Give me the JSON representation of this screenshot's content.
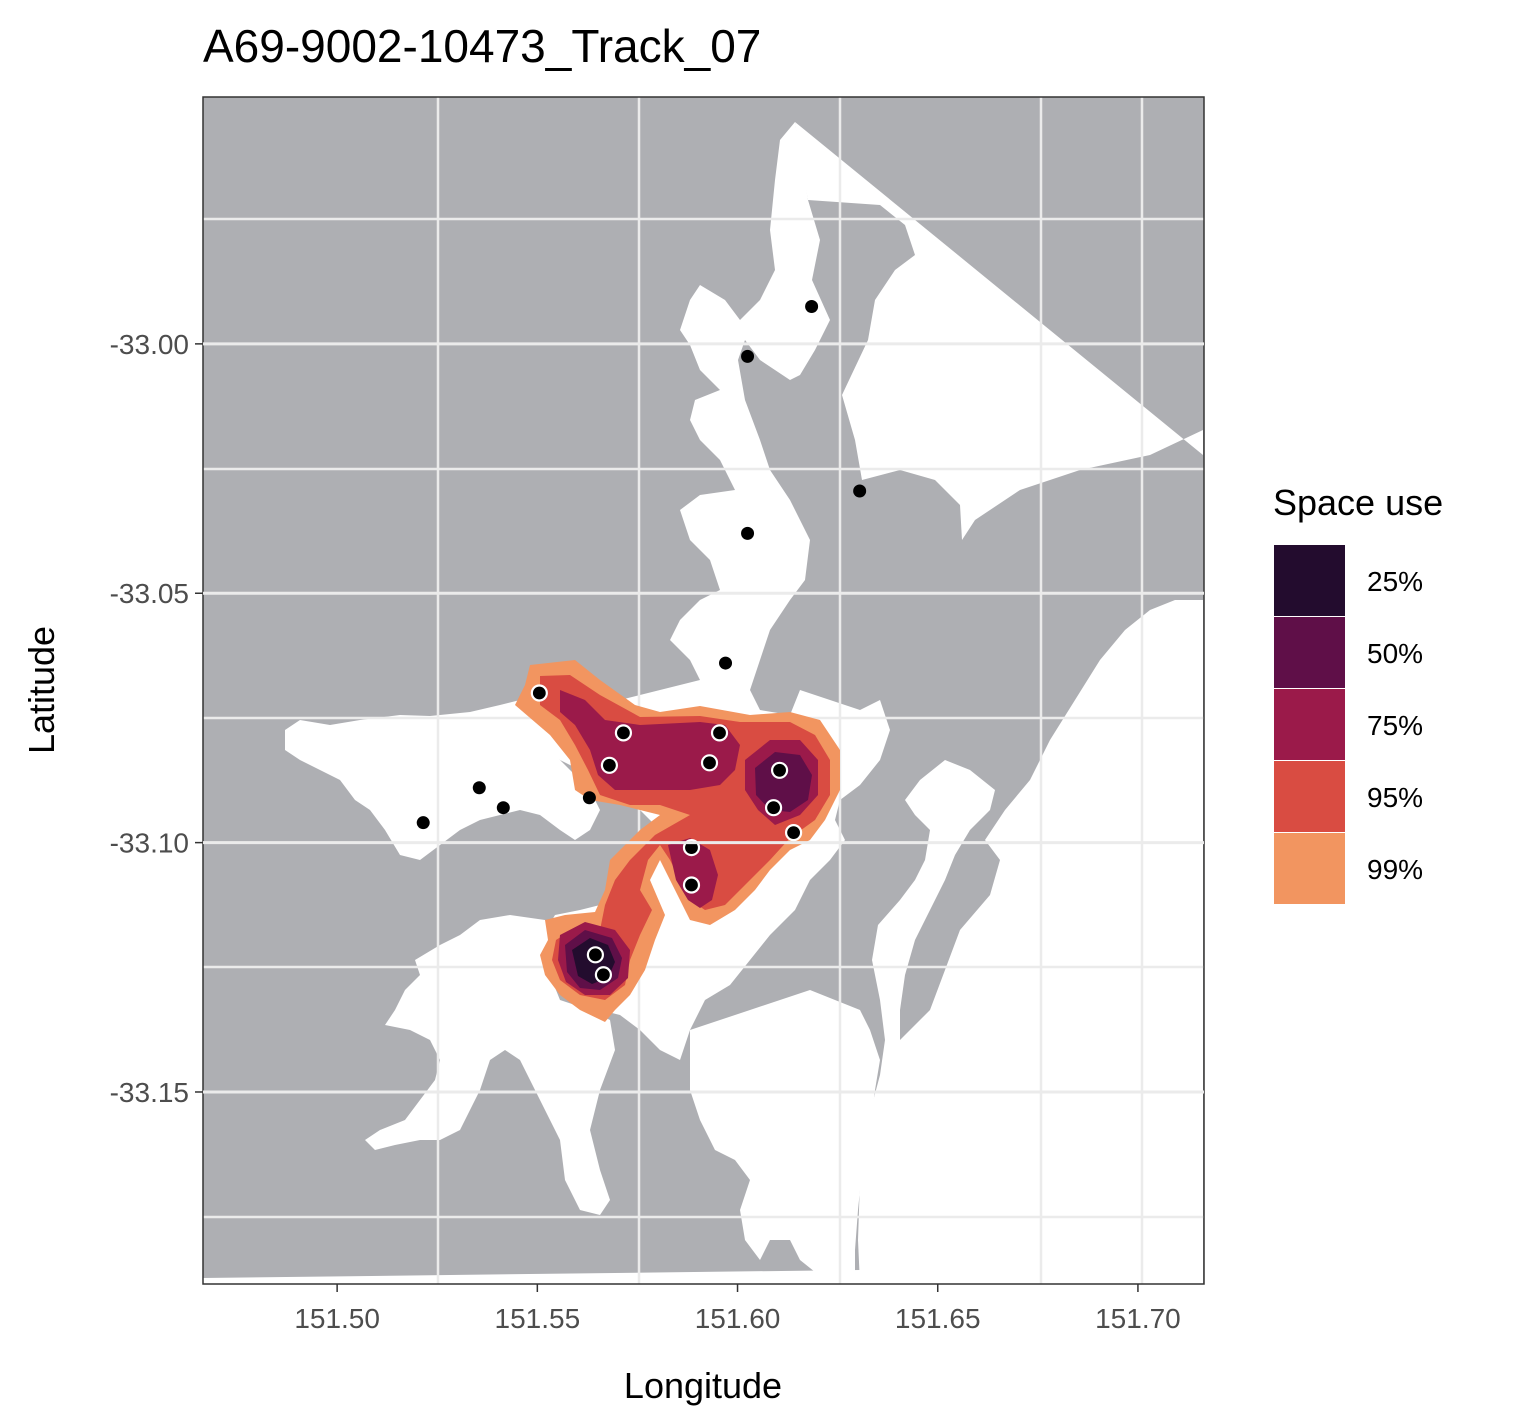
{
  "chart_data": {
    "type": "map",
    "title": "A69-9002-10473_Track_07",
    "xlabel": "Longitude",
    "ylabel": "Latitude",
    "xlim": [
      151.4665,
      151.7165
    ],
    "ylim": [
      -33.1885,
      -32.9505
    ],
    "x_ticks": [
      {
        "value": 151.5,
        "label": "151.50"
      },
      {
        "value": 151.55,
        "label": "151.55"
      },
      {
        "value": 151.6,
        "label": "151.60"
      },
      {
        "value": 151.65,
        "label": "151.65"
      },
      {
        "value": 151.7,
        "label": "151.70"
      }
    ],
    "y_ticks": [
      {
        "value": -33.0,
        "label": "-33.00"
      },
      {
        "value": -33.05,
        "label": "-33.05"
      },
      {
        "value": -33.1,
        "label": "-33.10"
      },
      {
        "value": -33.15,
        "label": "-33.15"
      }
    ],
    "grid": true,
    "colors": {
      "land": "#aeafb3",
      "water": "#ffffff",
      "grid": "#ebebeb"
    },
    "legend": {
      "title": "Space use",
      "position": "right",
      "items": [
        {
          "label": "25%",
          "color": "#230c2e"
        },
        {
          "label": "50%",
          "color": "#5f0f48"
        },
        {
          "label": "75%",
          "color": "#9b1a4a"
        },
        {
          "label": "95%",
          "color": "#d94c42"
        },
        {
          "label": "99%",
          "color": "#f29560"
        }
      ]
    },
    "detections": [
      {
        "x": 151.6185,
        "y": -32.9925,
        "in_space_use": false
      },
      {
        "x": 151.6025,
        "y": -33.0025,
        "in_space_use": false
      },
      {
        "x": 151.6305,
        "y": -33.0295,
        "in_space_use": false
      },
      {
        "x": 151.6025,
        "y": -33.038,
        "in_space_use": false
      },
      {
        "x": 151.597,
        "y": -33.064,
        "in_space_use": false
      },
      {
        "x": 151.5355,
        "y": -33.089,
        "in_space_use": false
      },
      {
        "x": 151.5415,
        "y": -33.093,
        "in_space_use": false
      },
      {
        "x": 151.5215,
        "y": -33.096,
        "in_space_use": false
      },
      {
        "x": 151.563,
        "y": -33.091,
        "in_space_use": false
      },
      {
        "x": 151.5505,
        "y": -33.07,
        "in_space_use": true
      },
      {
        "x": 151.5715,
        "y": -33.078,
        "in_space_use": true
      },
      {
        "x": 151.568,
        "y": -33.0845,
        "in_space_use": true
      },
      {
        "x": 151.5955,
        "y": -33.078,
        "in_space_use": true
      },
      {
        "x": 151.593,
        "y": -33.084,
        "in_space_use": true
      },
      {
        "x": 151.6105,
        "y": -33.0855,
        "in_space_use": true
      },
      {
        "x": 151.609,
        "y": -33.093,
        "in_space_use": true
      },
      {
        "x": 151.614,
        "y": -33.098,
        "in_space_use": true
      },
      {
        "x": 151.5885,
        "y": -33.101,
        "in_space_use": true
      },
      {
        "x": 151.5885,
        "y": -33.1085,
        "in_space_use": true
      },
      {
        "x": 151.5645,
        "y": -33.1225,
        "in_space_use": true
      },
      {
        "x": 151.5665,
        "y": -33.1265,
        "in_space_use": true
      }
    ]
  }
}
